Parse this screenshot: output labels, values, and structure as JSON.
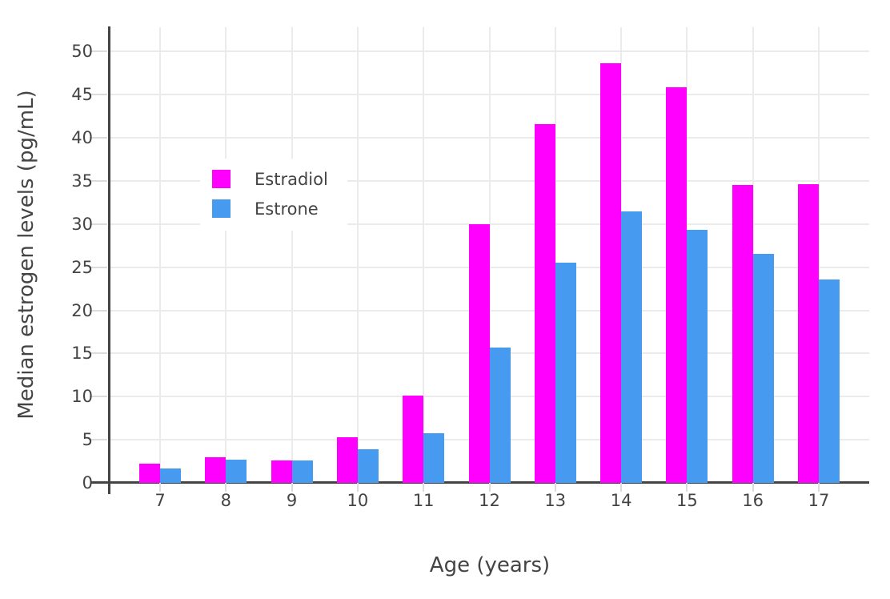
{
  "chart_data": {
    "type": "bar",
    "bar_mode": "grouped",
    "title": "",
    "xlabel": "Age (years)",
    "ylabel": "Median estrogen levels (pg/mL)",
    "categories": [
      "7",
      "8",
      "9",
      "10",
      "11",
      "12",
      "13",
      "14",
      "15",
      "16",
      "17"
    ],
    "series": [
      {
        "name": "Estradiol",
        "color": "#FF00FF",
        "values": [
          2.2,
          3.0,
          2.6,
          5.3,
          10.1,
          30.0,
          41.6,
          48.6,
          45.8,
          34.5,
          34.6
        ]
      },
      {
        "name": "Estrone",
        "color": "#469BF0",
        "values": [
          1.7,
          2.7,
          2.6,
          3.9,
          5.8,
          15.7,
          25.5,
          31.5,
          29.3,
          26.5,
          23.6
        ]
      }
    ],
    "ylim": [
      0,
      52.8
    ],
    "yticks": [
      0,
      5,
      10,
      15,
      20,
      25,
      30,
      35,
      40,
      45,
      50
    ],
    "grid": true,
    "legend_position": "inside-top-left"
  },
  "legend": {
    "items": [
      {
        "label": "Estradiol",
        "color": "#FF00FF"
      },
      {
        "label": "Estrone",
        "color": "#469BF0"
      }
    ]
  },
  "style": {
    "background": "#FFFFFF",
    "axis_text_color": "#444444",
    "axis_line_color": "#444444",
    "grid_color": "#EBEBEB",
    "tick_color": "#DCDCDC"
  }
}
